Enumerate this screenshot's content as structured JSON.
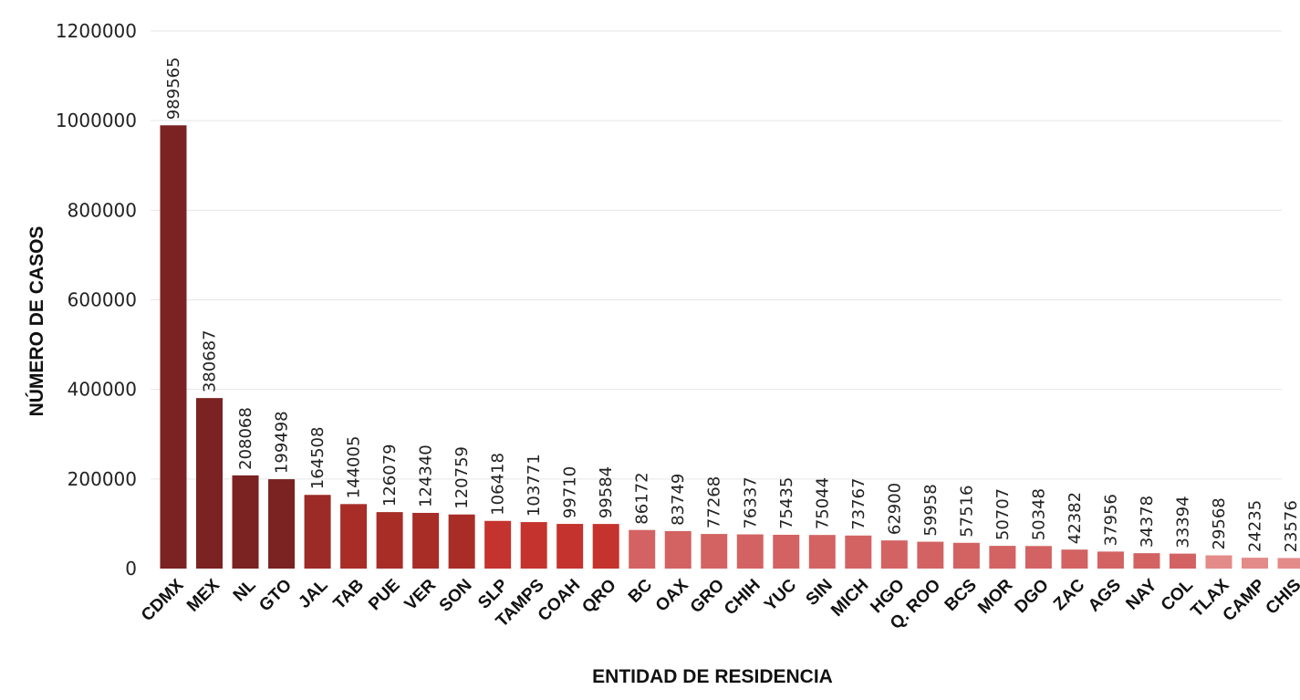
{
  "chart_data": {
    "type": "bar",
    "title": "",
    "xlabel": "ENTIDAD DE RESIDENCIA",
    "ylabel": "NÚMERO DE CASOS",
    "ylim": [
      0,
      1200000
    ],
    "yticks": [
      0,
      200000,
      400000,
      600000,
      800000,
      1000000,
      1200000
    ],
    "grid": true,
    "categories": [
      "CDMX",
      "MEX",
      "NL",
      "GTO",
      "JAL",
      "TAB",
      "PUE",
      "VER",
      "SON",
      "SLP",
      "TAMPS",
      "COAH",
      "QRO",
      "BC",
      "OAX",
      "GRO",
      "CHIH",
      "YUC",
      "SIN",
      "MICH",
      "HGO",
      "Q. ROO",
      "BCS",
      "MOR",
      "DGO",
      "ZAC",
      "AGS",
      "NAY",
      "COL",
      "TLAX",
      "CAMP",
      "CHIS"
    ],
    "values": [
      989565,
      380687,
      208068,
      199498,
      164508,
      144005,
      126079,
      124340,
      120759,
      106418,
      103771,
      99710,
      99584,
      86172,
      83749,
      77268,
      76337,
      75435,
      75044,
      73767,
      62900,
      59958,
      57516,
      50707,
      50348,
      42382,
      37956,
      34378,
      33394,
      29568,
      24235,
      23576
    ],
    "colors": [
      "#7b2222",
      "#7b2222",
      "#7b2222",
      "#7b2222",
      "#9c2a26",
      "#a82d27",
      "#a82d27",
      "#a82d27",
      "#a82d27",
      "#c4332d",
      "#c4332d",
      "#c4332d",
      "#c4332d",
      "#d26362",
      "#d26362",
      "#d26362",
      "#d26362",
      "#d26362",
      "#d26362",
      "#d26362",
      "#d26362",
      "#d26362",
      "#d26362",
      "#d26362",
      "#d26362",
      "#d26362",
      "#d26362",
      "#d26362",
      "#d26362",
      "#e38b89",
      "#e38b89",
      "#e38b89"
    ]
  }
}
